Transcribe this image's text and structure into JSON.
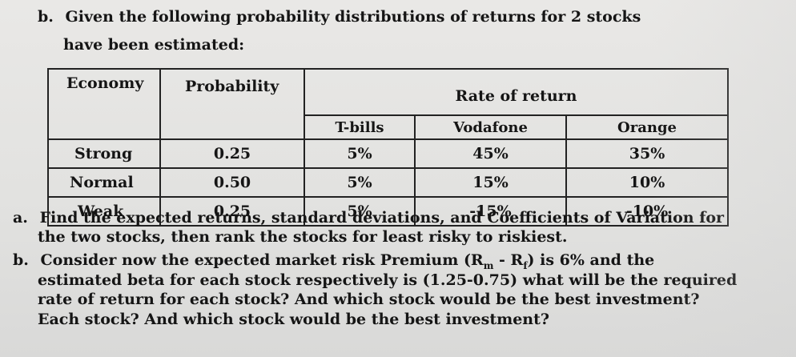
{
  "intro": {
    "marker": "b.",
    "line1": "Given the following probability distributions of returns for 2 stocks",
    "line2": "have been estimated:"
  },
  "table": {
    "headers": {
      "economy": "Economy",
      "probability": "Probability",
      "rate_of_return": "Rate of return",
      "tbills": "T-bills",
      "vodafone": "Vodafone",
      "orange": "Orange"
    },
    "rows": [
      {
        "economy": "Strong",
        "probability": "0.25",
        "tbills": "5%",
        "vodafone": "45%",
        "orange": "35%"
      },
      {
        "economy": "Normal",
        "probability": "0.50",
        "tbills": "5%",
        "vodafone": "15%",
        "orange": "10%"
      },
      {
        "economy": "Weak",
        "probability": "0.25",
        "tbills": "5%",
        "vodafone": "-15%",
        "orange": "-10%"
      }
    ]
  },
  "question_a": {
    "marker": "a.",
    "line1": "Find the expected returns, standard deviations, and Coefficients of Variation for",
    "line2": "the two stocks, then rank the stocks for least risky to riskiest."
  },
  "question_b": {
    "marker": "b.",
    "line1_pre": "Consider now the expected market risk Premium (R",
    "sub_m": "m",
    "line1_mid": " - R",
    "sub_f": "f",
    "line1_post": ") is 6% and the",
    "line2": "estimated beta for each stock respectively is (1.25-0.75) what will be the required",
    "line3": "rate of return for each stock? And which stock would be the best investment?",
    "line4": "Each stock? And which stock would be the best investment?"
  }
}
